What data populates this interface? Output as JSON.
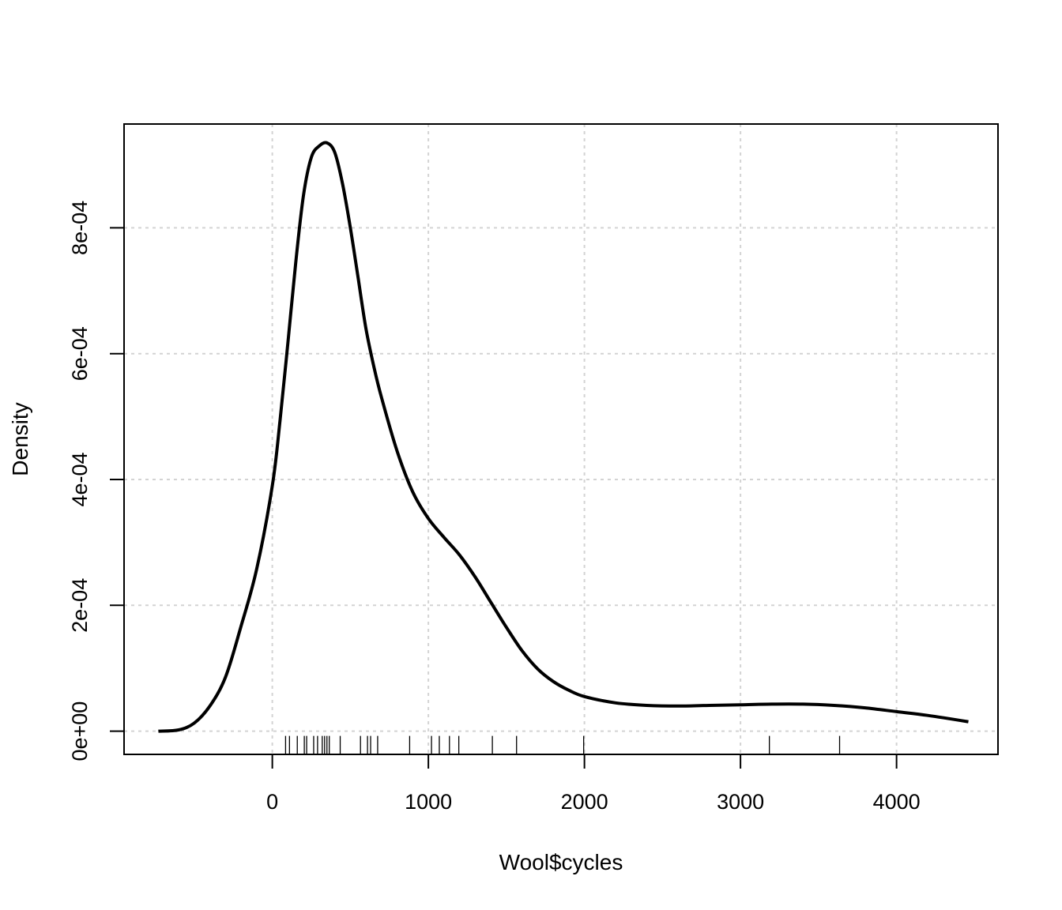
{
  "chart_data": {
    "type": "line",
    "title": "",
    "xlabel": "Wool$cycles",
    "ylabel": "Density",
    "xlim": [
      -950,
      4650
    ],
    "ylim": [
      -3.69e-05,
      0.000965
    ],
    "grid": true,
    "x_ticks": [
      {
        "value": 0,
        "label": "0"
      },
      {
        "value": 1000,
        "label": "1000"
      },
      {
        "value": 2000,
        "label": "2000"
      },
      {
        "value": 3000,
        "label": "3000"
      },
      {
        "value": 4000,
        "label": "4000"
      }
    ],
    "y_ticks": [
      {
        "value": 0,
        "label": "0e+00"
      },
      {
        "value": 0.0002,
        "label": "2e-04"
      },
      {
        "value": 0.0004,
        "label": "4e-04"
      },
      {
        "value": 0.0006,
        "label": "6e-04"
      },
      {
        "value": 0.0008,
        "label": "8e-04"
      }
    ],
    "series": [
      {
        "x": [
          -730,
          -600,
          -500,
          -400,
          -300,
          -200,
          -100,
          0,
          50,
          100,
          150,
          200,
          250,
          300,
          350,
          400,
          450,
          500,
          550,
          600,
          650,
          700,
          800,
          900,
          1000,
          1100,
          1200,
          1300,
          1400,
          1500,
          1600,
          1700,
          1800,
          1900,
          2000,
          2200,
          2400,
          2600,
          2800,
          3000,
          3200,
          3400,
          3600,
          3800,
          4000,
          4200,
          4460
        ],
        "y": [
          0.0,
          2e-06,
          1.3e-05,
          4e-05,
          8.6e-05,
          0.000167,
          0.000258,
          0.00039,
          0.000495,
          0.000618,
          0.000745,
          0.000852,
          0.000912,
          0.00093,
          0.000935,
          0.00092,
          0.00087,
          0.0008,
          0.00072,
          0.00064,
          0.00058,
          0.00053,
          0.000445,
          0.00038,
          0.000338,
          0.000308,
          0.00028,
          0.000245,
          0.000205,
          0.000165,
          0.000128,
          9.9e-05,
          7.9e-05,
          6.5e-05,
          5.5e-05,
          4.5e-05,
          4.1e-05,
          4e-05,
          4.1e-05,
          4.2e-05,
          4.3e-05,
          4.3e-05,
          4.1e-05,
          3.7e-05,
          3.1e-05,
          2.5e-05,
          1.5e-05
        ],
        "color": "#000000"
      }
    ],
    "rug": [
      85,
      110,
      160,
      205,
      220,
      265,
      290,
      320,
      335,
      350,
      365,
      435,
      565,
      610,
      630,
      675,
      880,
      1020,
      1070,
      1135,
      1195,
      1410,
      1565,
      1995,
      3185,
      3635
    ]
  }
}
